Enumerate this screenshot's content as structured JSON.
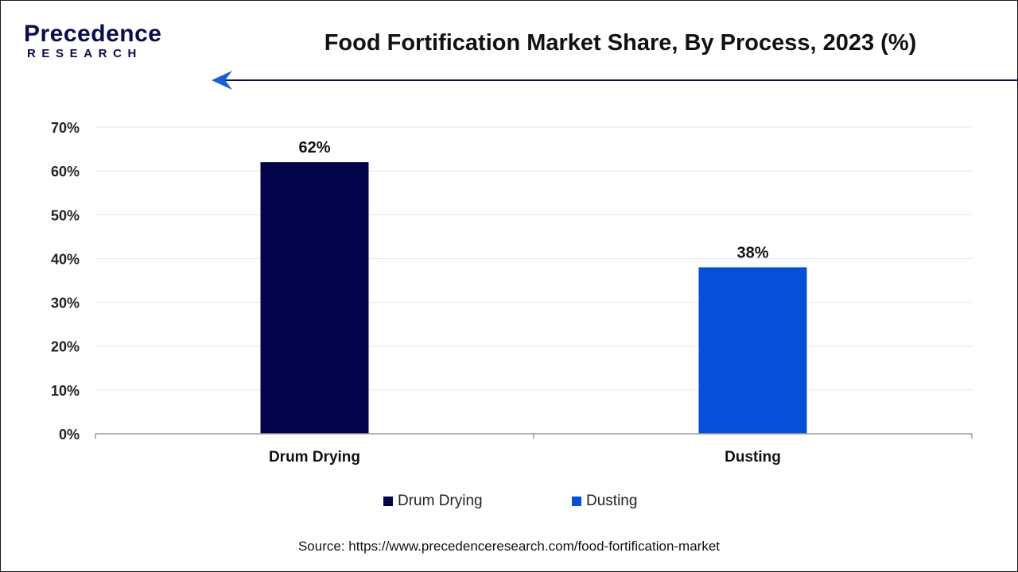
{
  "brand": {
    "name": "Precedence",
    "sub": "RESEARCH",
    "color": "#0b0b4f",
    "accent": "#1a5fd6"
  },
  "title": "Food Fortification Market Share, By Process, 2023 (%)",
  "chart_data": {
    "type": "bar",
    "title": "Food Fortification Market Share, By Process, 2023 (%)",
    "categories": [
      "Drum Drying",
      "Dusting"
    ],
    "values": [
      62,
      38
    ],
    "value_labels": [
      "62%",
      "38%"
    ],
    "colors": [
      "#04044a",
      "#074ed8"
    ],
    "ylim": [
      0,
      70
    ],
    "yticks": [
      0,
      10,
      20,
      30,
      40,
      50,
      60,
      70
    ],
    "ytick_labels": [
      "0%",
      "10%",
      "20%",
      "30%",
      "40%",
      "50%",
      "60%",
      "70%"
    ],
    "xlabel": "",
    "ylabel": "",
    "grid": true,
    "legend": {
      "position": "bottom",
      "entries": [
        {
          "label": "Drum Drying",
          "color": "#04044a"
        },
        {
          "label": "Dusting",
          "color": "#074ed8"
        }
      ]
    }
  },
  "source": "Source: https://www.precedenceresearch.com/food-fortification-market"
}
